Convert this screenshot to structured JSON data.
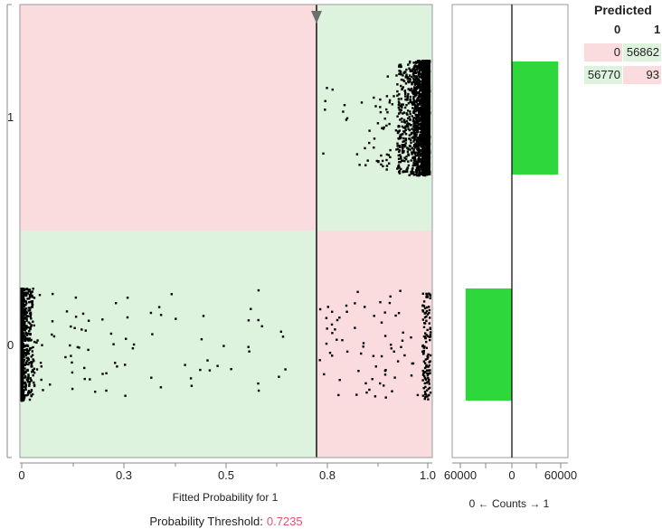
{
  "chart_data": {
    "type": "scatter",
    "xlabel": "Fitted Probability for 1",
    "x_ticks": [
      "0",
      "0.3",
      "0.5",
      "0.8",
      "1.0"
    ],
    "y_categories": [
      "0",
      "1"
    ],
    "threshold_label": "Probability Threshold:",
    "threshold_value": "0.7235",
    "threshold": 0.7235,
    "zones": {
      "correct_color": "#ddf3de",
      "wrong_color": "#fadcdf"
    },
    "histogram": {
      "type": "bar",
      "xlabel": "0 ← Counts → 1",
      "tick_labels": [
        "60000",
        "0",
        "60000"
      ],
      "bars": [
        {
          "row": "1",
          "side": "1",
          "count": 56955
        },
        {
          "row": "0",
          "side": "0",
          "count": 56863
        }
      ],
      "bar_color": "#2ed83c"
    }
  },
  "confusion_matrix": {
    "title": "Predicted",
    "col_headers": [
      "0",
      "1"
    ],
    "rows": [
      {
        "cells": [
          "0",
          "56862"
        ]
      },
      {
        "cells": [
          "56770",
          "93"
        ]
      }
    ],
    "colors": {
      "correct": "#ddf3de",
      "wrong": "#fadcdf"
    }
  }
}
